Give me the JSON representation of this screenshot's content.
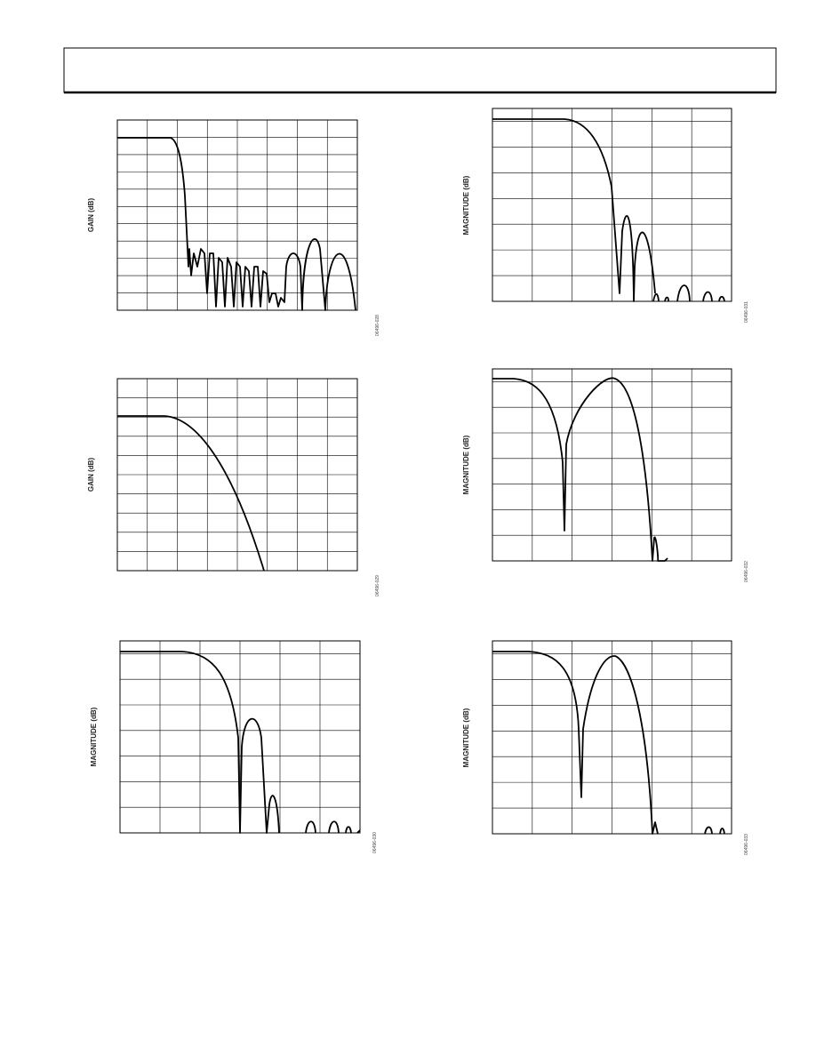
{
  "figures": [
    {
      "y_axis_label": "GAIN (dB)",
      "figure_code": "06496-028"
    },
    {
      "y_axis_label": "GAIN (dB)",
      "figure_code": "06496-029"
    },
    {
      "y_axis_label": "MAGNITUDE (dB)",
      "figure_code": "06496-030"
    },
    {
      "y_axis_label": "MAGNITUDE (dB)",
      "figure_code": "06496-031"
    },
    {
      "y_axis_label": "MAGNITUDE (dB)",
      "figure_code": "06496-032"
    },
    {
      "y_axis_label": "MAGNITUDE (dB)",
      "figure_code": "06496-033"
    }
  ]
}
